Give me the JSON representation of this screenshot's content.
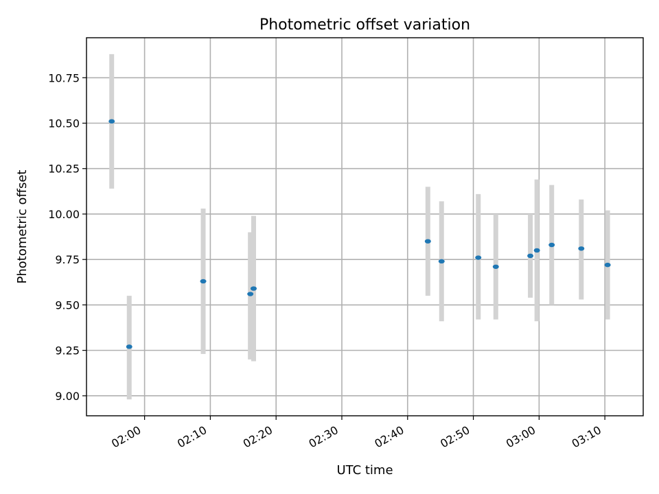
{
  "chart_data": {
    "type": "scatter",
    "title": "Photometric offset variation",
    "xlabel": "UTC time",
    "ylabel": "Photometric offset",
    "x_unit": "UTC time (HH:MM)",
    "xlim": [
      "01:51:10",
      "03:15:50"
    ],
    "ylim": [
      8.89,
      10.97
    ],
    "x_ticks": [
      "02:00",
      "02:10",
      "02:20",
      "02:30",
      "02:40",
      "02:50",
      "03:00",
      "03:10"
    ],
    "y_ticks": [
      "9.00",
      "9.25",
      "9.50",
      "9.75",
      "10.00",
      "10.25",
      "10.50",
      "10.75"
    ],
    "grid": true,
    "colors": {
      "points": "#1f77b4",
      "error_bars": "#d3d3d3",
      "grid": "#b0b0b0"
    },
    "series": [
      {
        "points": [
          {
            "x": "01:55:00",
            "y": 10.51,
            "yerr_low": 10.14,
            "yerr_high": 10.88
          },
          {
            "x": "01:57:40",
            "y": 9.27,
            "yerr_low": 8.98,
            "yerr_high": 9.55
          },
          {
            "x": "02:08:55",
            "y": 9.63,
            "yerr_low": 9.23,
            "yerr_high": 10.03
          },
          {
            "x": "02:16:05",
            "y": 9.56,
            "yerr_low": 9.2,
            "yerr_high": 9.9
          },
          {
            "x": "02:16:35",
            "y": 9.59,
            "yerr_low": 9.19,
            "yerr_high": 9.99
          },
          {
            "x": "02:43:05",
            "y": 9.85,
            "yerr_low": 9.55,
            "yerr_high": 10.15
          },
          {
            "x": "02:45:10",
            "y": 9.74,
            "yerr_low": 9.41,
            "yerr_high": 10.07
          },
          {
            "x": "02:50:45",
            "y": 9.76,
            "yerr_low": 9.42,
            "yerr_high": 10.11
          },
          {
            "x": "02:53:25",
            "y": 9.71,
            "yerr_low": 9.42,
            "yerr_high": 10.0
          },
          {
            "x": "02:58:40",
            "y": 9.77,
            "yerr_low": 9.54,
            "yerr_high": 10.0
          },
          {
            "x": "02:59:40",
            "y": 9.8,
            "yerr_low": 9.41,
            "yerr_high": 10.19
          },
          {
            "x": "03:01:55",
            "y": 9.83,
            "yerr_low": 9.5,
            "yerr_high": 10.16
          },
          {
            "x": "03:06:25",
            "y": 9.81,
            "yerr_low": 9.53,
            "yerr_high": 10.08
          },
          {
            "x": "03:10:25",
            "y": 9.72,
            "yerr_low": 9.42,
            "yerr_high": 10.02
          }
        ]
      }
    ]
  }
}
